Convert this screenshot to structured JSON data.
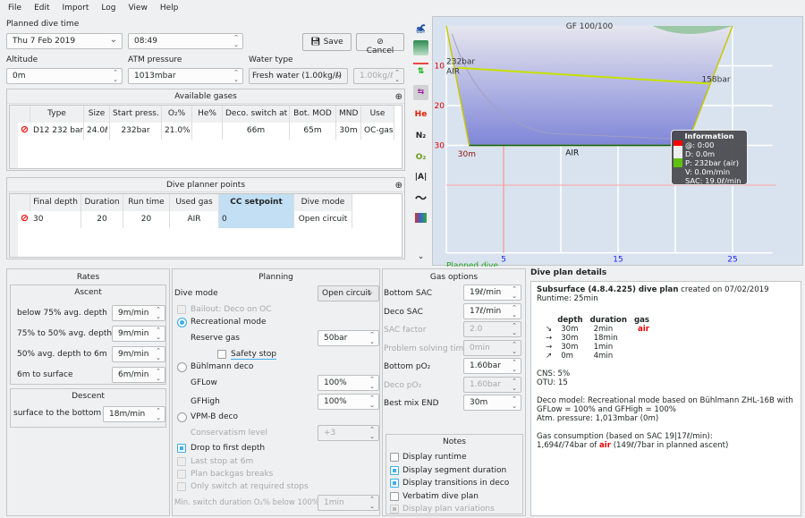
{
  "menu": [
    "File",
    "Edit",
    "Import",
    "Log",
    "View",
    "Help"
  ],
  "top": {
    "planned_dive_time_label": "Planned dive time",
    "date": "Thu 7 Feb 2019",
    "time": "08:49",
    "save": "Save",
    "cancel": "Cancel",
    "altitude_label": "Altitude",
    "altitude": "0m",
    "atm_label": "ATM pressure",
    "atm": "1013mbar",
    "water_label": "Water type",
    "water": "Fresh water (1.00kg/ℓ)",
    "density": "1.00kg/ℓ"
  },
  "gases": {
    "title": "Available gases",
    "headers": [
      "Type",
      "Size",
      "Start press.",
      "O₂%",
      "He%",
      "Deco. switch at",
      "Bot. MOD",
      "MND",
      "Use"
    ],
    "rows": [
      [
        "D12 232 bar",
        "24.0ℓ",
        "232bar",
        "21.0%",
        "",
        "66m",
        "65m",
        "30m",
        "OC-gas"
      ]
    ]
  },
  "points": {
    "title": "Dive planner points",
    "headers": [
      "Final depth",
      "Duration",
      "Run time",
      "Used gas",
      "CC setpoint",
      "Dive mode"
    ],
    "rows": [
      [
        "30",
        "20",
        "20",
        "AIR",
        "0",
        "Open circuit"
      ]
    ]
  },
  "toolbar_icons": [
    "diver-icon",
    "ceiling-icon",
    "tissue-icon",
    "gas-icon",
    "he-icon",
    "n2-icon",
    "o2-icon",
    "mod-icon",
    "heartrate-icon",
    "tissue-heatmap-icon",
    "chevron-down-icon"
  ],
  "profile": {
    "gf": "GF 100/100",
    "depth_ticks": [
      "10",
      "20",
      "30"
    ],
    "time_ticks": [
      "5",
      "15",
      "25"
    ],
    "start_pressure": "232bar",
    "end_pressure": "158bar",
    "gas_start": "AIR",
    "gas_bottom": "AIR",
    "max_depth": "30m",
    "label": "Planned dive",
    "points": [
      [
        0,
        0
      ],
      [
        2,
        30
      ],
      [
        21,
        30
      ],
      [
        25,
        0
      ]
    ],
    "pressure": [
      [
        1,
        232
      ],
      [
        23,
        158
      ]
    ],
    "colors": {
      "depth_fill": "#7f86d8",
      "pressure": "#c8e000",
      "axis_depth": "#e00000",
      "axis_time": "#2020ff"
    },
    "info": {
      "title": "Information",
      "lines": [
        "@: 0:00",
        "D: 0.0m",
        "P: 232bar (air)",
        "V: 0.0m/min",
        "SAC: 19.0ℓ/min"
      ]
    }
  },
  "rates": {
    "title": "Rates",
    "ascent_title": "Ascent",
    "ascent": [
      {
        "label": "below 75% avg. depth",
        "value": "9m/min"
      },
      {
        "label": "75% to 50% avg. depth",
        "value": "9m/min"
      },
      {
        "label": "50% avg. depth to 6m",
        "value": "9m/min"
      },
      {
        "label": "6m to surface",
        "value": "6m/min"
      }
    ],
    "descent_title": "Descent",
    "descent": {
      "label": "surface to the bottom",
      "value": "18m/min"
    }
  },
  "planning": {
    "title": "Planning",
    "dive_mode_label": "Dive mode",
    "dive_mode": "Open circuit",
    "bailout": "Bailout: Deco on OC",
    "recreational": "Recreational mode",
    "reserve_label": "Reserve gas",
    "reserve": "50bar",
    "safety_stop": "Safety stop",
    "buhlmann": "Bühlmann deco",
    "gflow_label": "GFLow",
    "gflow": "100%",
    "gfhigh_label": "GFHigh",
    "gfhigh": "100%",
    "vpmb": "VPM-B deco",
    "conservatism_label": "Conservatism level",
    "conservatism": "+3",
    "drop": "Drop to first depth",
    "last_stop": "Last stop at 6m",
    "backgas": "Plan backgas breaks",
    "only_switch": "Only switch at required stops",
    "min_switch_label": "Min. switch duration O₂% below 100%",
    "min_switch": "1min"
  },
  "gasopts": {
    "title": "Gas options",
    "rows": [
      {
        "label": "Bottom SAC",
        "value": "19ℓ/min",
        "disabled": false
      },
      {
        "label": "Deco SAC",
        "value": "17ℓ/min",
        "disabled": false
      },
      {
        "label": "SAC factor",
        "value": "2.0",
        "disabled": true
      },
      {
        "label": "Problem solving time",
        "value": "0min",
        "disabled": true
      },
      {
        "label": "Bottom pO₂",
        "value": "1.60bar",
        "disabled": false
      },
      {
        "label": "Deco pO₂",
        "value": "1.60bar",
        "disabled": true
      },
      {
        "label": "Best mix END",
        "value": "30m",
        "disabled": false
      }
    ]
  },
  "notes": {
    "title": "Notes",
    "items": [
      {
        "label": "Display runtime",
        "checked": false,
        "disabled": false
      },
      {
        "label": "Display segment duration",
        "checked": true,
        "disabled": false
      },
      {
        "label": "Display transitions in deco",
        "checked": true,
        "disabled": false
      },
      {
        "label": "Verbatim dive plan",
        "checked": false,
        "disabled": false
      },
      {
        "label": "Display plan variations",
        "checked": true,
        "disabled": true
      }
    ]
  },
  "details": {
    "title": "Dive plan details",
    "heading": "Subsurface (4.8.4.225) dive plan",
    "created": " created on 07/02/2019",
    "runtime": "Runtime: 25min",
    "cols": [
      "depth",
      "duration",
      "gas"
    ],
    "segments": [
      [
        "↘",
        "30m",
        "2min",
        "air"
      ],
      [
        "→",
        "30m",
        "18min",
        ""
      ],
      [
        "→",
        "30m",
        "1min",
        ""
      ],
      [
        "↗",
        "0m",
        "4min",
        ""
      ]
    ],
    "cns": "CNS: 5%",
    "otu": "OTU: 15",
    "deco1": "Deco model: Recreational mode based on Bühlmann ZHL-16B with",
    "deco2": "GFLow = 100% and GFHigh = 100%",
    "atm": "Atm. pressure: 1,013mbar (0m)",
    "gas1": "Gas consumption (based on SAC 19|17ℓ/min):",
    "gas2a": "1,694ℓ/74bar of ",
    "gas2b": "air",
    "gas2c": " (149ℓ/7bar in planned ascent)"
  }
}
